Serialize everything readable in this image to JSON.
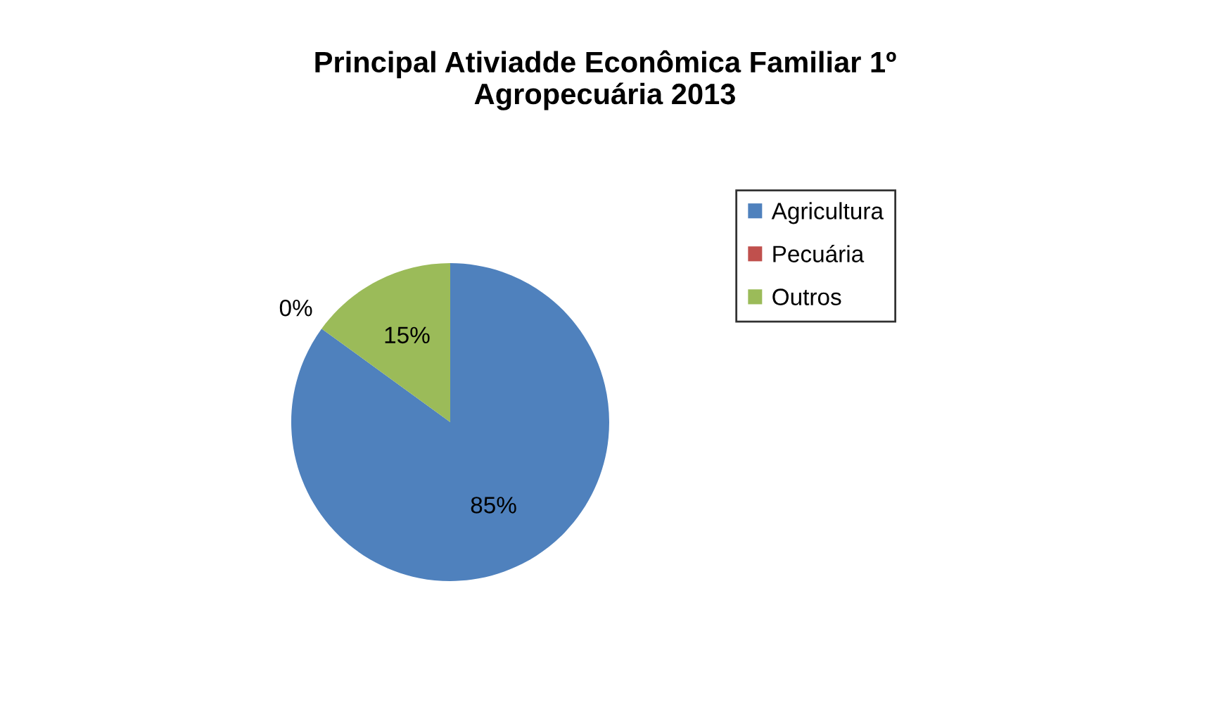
{
  "chart_data": {
    "type": "pie",
    "title": "Principal Ativiadde Econômica Familiar 1º\nAgropecuária 2013",
    "categories": [
      "Agricultura",
      "Pecuária",
      "Outros"
    ],
    "values": [
      85,
      0,
      15
    ],
    "colors": [
      "#4f81bd",
      "#c0504d",
      "#9bbb59"
    ],
    "value_labels": [
      "85%",
      "0%",
      "15%"
    ],
    "legend": "top right"
  }
}
